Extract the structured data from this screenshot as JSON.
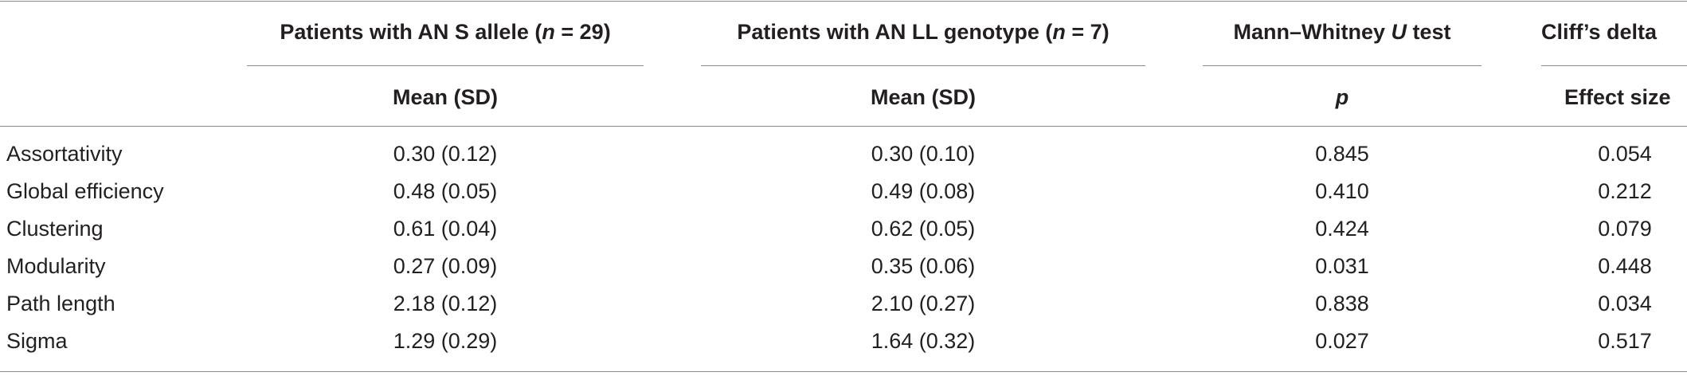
{
  "headers": {
    "col1": {
      "prefix": "Patients with AN S allele (",
      "n_var": "n",
      "suffix": " = 29)"
    },
    "col2": {
      "prefix": "Patients with AN LL genotype (",
      "n_var": "n",
      "suffix": " = 7)"
    },
    "col3": {
      "prefix": "Mann–Whitney ",
      "var": "U",
      "suffix": " test"
    },
    "col4": "Cliff’s delta"
  },
  "subheaders": {
    "col1": "Mean (SD)",
    "col2": "Mean (SD)",
    "col3": "p",
    "col4": "Effect size"
  },
  "rows": [
    {
      "label": "Assortativity",
      "s_allele": "0.30 (0.12)",
      "ll_genotype": "0.30 (0.10)",
      "p": "0.845",
      "effect": "0.054"
    },
    {
      "label": "Global efficiency",
      "s_allele": "0.48 (0.05)",
      "ll_genotype": "0.49 (0.08)",
      "p": "0.410",
      "effect": "0.212"
    },
    {
      "label": "Clustering",
      "s_allele": "0.61 (0.04)",
      "ll_genotype": "0.62 (0.05)",
      "p": "0.424",
      "effect": "0.079"
    },
    {
      "label": "Modularity",
      "s_allele": "0.27 (0.09)",
      "ll_genotype": "0.35 (0.06)",
      "p": "0.031",
      "effect": "0.448"
    },
    {
      "label": "Path length",
      "s_allele": "2.18 (0.12)",
      "ll_genotype": "2.10 (0.27)",
      "p": "0.838",
      "effect": "0.034"
    },
    {
      "label": "Sigma",
      "s_allele": "1.29 (0.29)",
      "ll_genotype": "1.64 (0.32)",
      "p": "0.027",
      "effect": "0.517"
    }
  ]
}
